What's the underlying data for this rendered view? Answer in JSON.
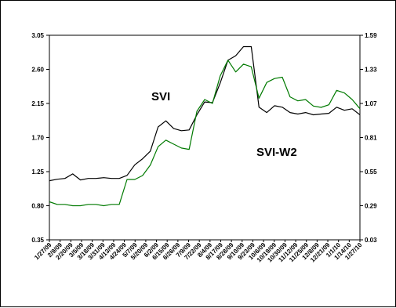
{
  "chart_data": {
    "type": "line",
    "title": "",
    "xlabel": "",
    "ylabel": "",
    "grid": false,
    "legend": "none",
    "annotations": [
      "SVI",
      "SVI-W2"
    ],
    "left_axis": {
      "ticks": [
        "3.05",
        "2.60",
        "2.15",
        "1.70",
        "1.25",
        "0.80",
        "0.35"
      ],
      "ylim": [
        0.35,
        3.05
      ]
    },
    "right_axis": {
      "ticks": [
        "1.59",
        "1.33",
        "1.07",
        "0.81",
        "0.55",
        "0.29",
        "0.03"
      ],
      "ylim": [
        0.03,
        1.59
      ]
    },
    "x_tick_labels": [
      "1/27/09",
      "2/9/09",
      "2/20/09",
      "3/5/09",
      "3/18/09",
      "3/31/09",
      "4/13/09",
      "4/24/09",
      "5/7/09",
      "5/20/09",
      "6/2/09",
      "6/15/09",
      "6/26/09",
      "7/9/09",
      "7/22/09",
      "8/4/09",
      "8/17/09",
      "8/28/09",
      "9/10/09",
      "9/23/09",
      "10/6/09",
      "10/19/09",
      "10/30/09",
      "11/12/09",
      "11/25/09",
      "12/8/09",
      "12/21/09",
      "1/1/10",
      "1/14/10",
      "1/27/10"
    ],
    "series": [
      {
        "name": "SVI",
        "axis": "left",
        "color": "#000000",
        "values": [
          1.13,
          1.15,
          1.16,
          1.22,
          1.14,
          1.16,
          1.16,
          1.17,
          1.16,
          1.16,
          1.2,
          1.34,
          1.42,
          1.52,
          1.84,
          1.92,
          1.82,
          1.79,
          1.8,
          2.0,
          2.17,
          2.16,
          2.42,
          2.72,
          2.78,
          2.9,
          2.9,
          2.1,
          2.03,
          2.12,
          2.1,
          2.03,
          2.01,
          2.03,
          2.0,
          2.01,
          2.02,
          2.1,
          2.06,
          2.08,
          2.0
        ]
      },
      {
        "name": "SVI-W2",
        "axis": "right",
        "color": "#007a00",
        "values": [
          0.32,
          0.3,
          0.3,
          0.29,
          0.29,
          0.3,
          0.3,
          0.29,
          0.3,
          0.3,
          0.49,
          0.49,
          0.52,
          0.6,
          0.74,
          0.79,
          0.76,
          0.73,
          0.72,
          1.01,
          1.1,
          1.07,
          1.28,
          1.4,
          1.31,
          1.37,
          1.35,
          1.11,
          1.23,
          1.26,
          1.27,
          1.12,
          1.09,
          1.1,
          1.05,
          1.04,
          1.06,
          1.17,
          1.15,
          1.1,
          1.03
        ]
      }
    ]
  }
}
